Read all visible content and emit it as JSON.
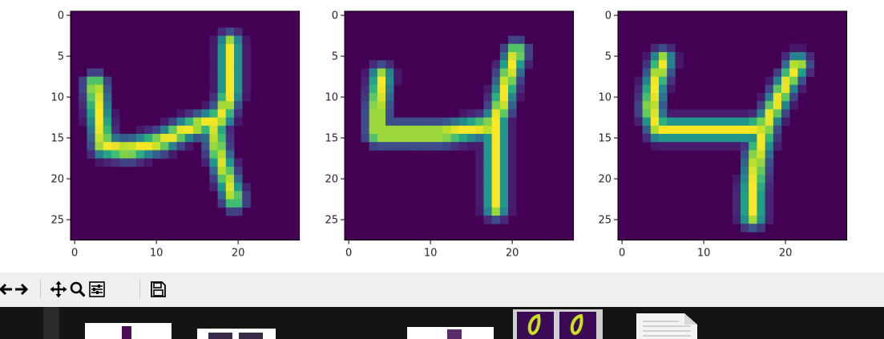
{
  "figure": {
    "panels": [
      {
        "name": "digit-4-sample-a",
        "xticks": [
          0,
          10,
          20
        ],
        "yticks": [
          0,
          5,
          10,
          15,
          20,
          25
        ],
        "colormap": "viridis",
        "strokes": [
          {
            "path": [
              [
                3,
                9
              ],
              [
                3.5,
                13
              ],
              [
                4,
                16.5
              ],
              [
                7,
                17
              ],
              [
                11,
                16
              ],
              [
                14,
                14.5
              ],
              [
                17,
                13.5
              ],
              [
                18.5,
                13
              ],
              [
                19.5,
                10
              ],
              [
                19.5,
                4
              ]
            ],
            "width": 1.6,
            "peak": 1.0
          },
          {
            "path": [
              [
                17.5,
                13.5
              ],
              [
                18,
                17
              ],
              [
                19,
                20
              ],
              [
                20,
                23
              ]
            ],
            "width": 1.6,
            "peak": 0.95
          }
        ]
      },
      {
        "name": "digit-4-sample-b",
        "xticks": [
          0,
          10,
          20
        ],
        "yticks": [
          0,
          5,
          10,
          15,
          20,
          25
        ],
        "colormap": "viridis",
        "strokes": [
          {
            "path": [
              [
                4.5,
                8
              ],
              [
                4,
                12
              ],
              [
                4,
                15
              ],
              [
                8,
                15
              ],
              [
                12,
                15
              ],
              [
                15,
                14.5
              ],
              [
                18,
                14
              ],
              [
                19,
                12
              ],
              [
                20,
                8
              ],
              [
                21,
                5
              ]
            ],
            "width": 1.6,
            "peak": 1.0
          },
          {
            "path": [
              [
                18.5,
                13
              ],
              [
                18.5,
                18
              ],
              [
                18.5,
                24
              ]
            ],
            "width": 1.6,
            "peak": 1.0
          }
        ]
      },
      {
        "name": "digit-4-sample-c",
        "xticks": [
          0,
          10,
          20
        ],
        "yticks": [
          0,
          5,
          10,
          15,
          20,
          25
        ],
        "colormap": "viridis",
        "strokes": [
          {
            "path": [
              [
                5.5,
                6
              ],
              [
                4.5,
                9
              ],
              [
                4,
                12
              ],
              [
                5,
                14.5
              ],
              [
                8,
                14.5
              ],
              [
                12,
                14.5
              ],
              [
                16,
                14.5
              ],
              [
                18,
                14
              ],
              [
                19,
                12
              ],
              [
                20.5,
                9
              ],
              [
                22,
                6.5
              ]
            ],
            "width": 1.6,
            "peak": 1.0
          },
          {
            "path": [
              [
                18,
                14
              ],
              [
                17,
                18
              ],
              [
                16.5,
                22
              ],
              [
                16.5,
                25
              ]
            ],
            "width": 1.7,
            "peak": 1.0
          }
        ]
      }
    ]
  },
  "toolbar": {
    "buttons": [
      {
        "name": "back-button",
        "icon": "arrow-left-icon"
      },
      {
        "name": "forward-button",
        "icon": "arrow-right-icon"
      },
      {
        "name": "pan-button",
        "icon": "move-icon"
      },
      {
        "name": "zoom-button",
        "icon": "magnifier-icon"
      },
      {
        "name": "configure-subplots-button",
        "icon": "sliders-icon"
      },
      {
        "name": "save-button",
        "icon": "floppy-disk-icon"
      }
    ]
  },
  "taskbar": {
    "items": [
      "window-thumbnail",
      "window-thumbnail",
      "window-thumbnail",
      "figure-thumbnail",
      "document-icon"
    ]
  }
}
